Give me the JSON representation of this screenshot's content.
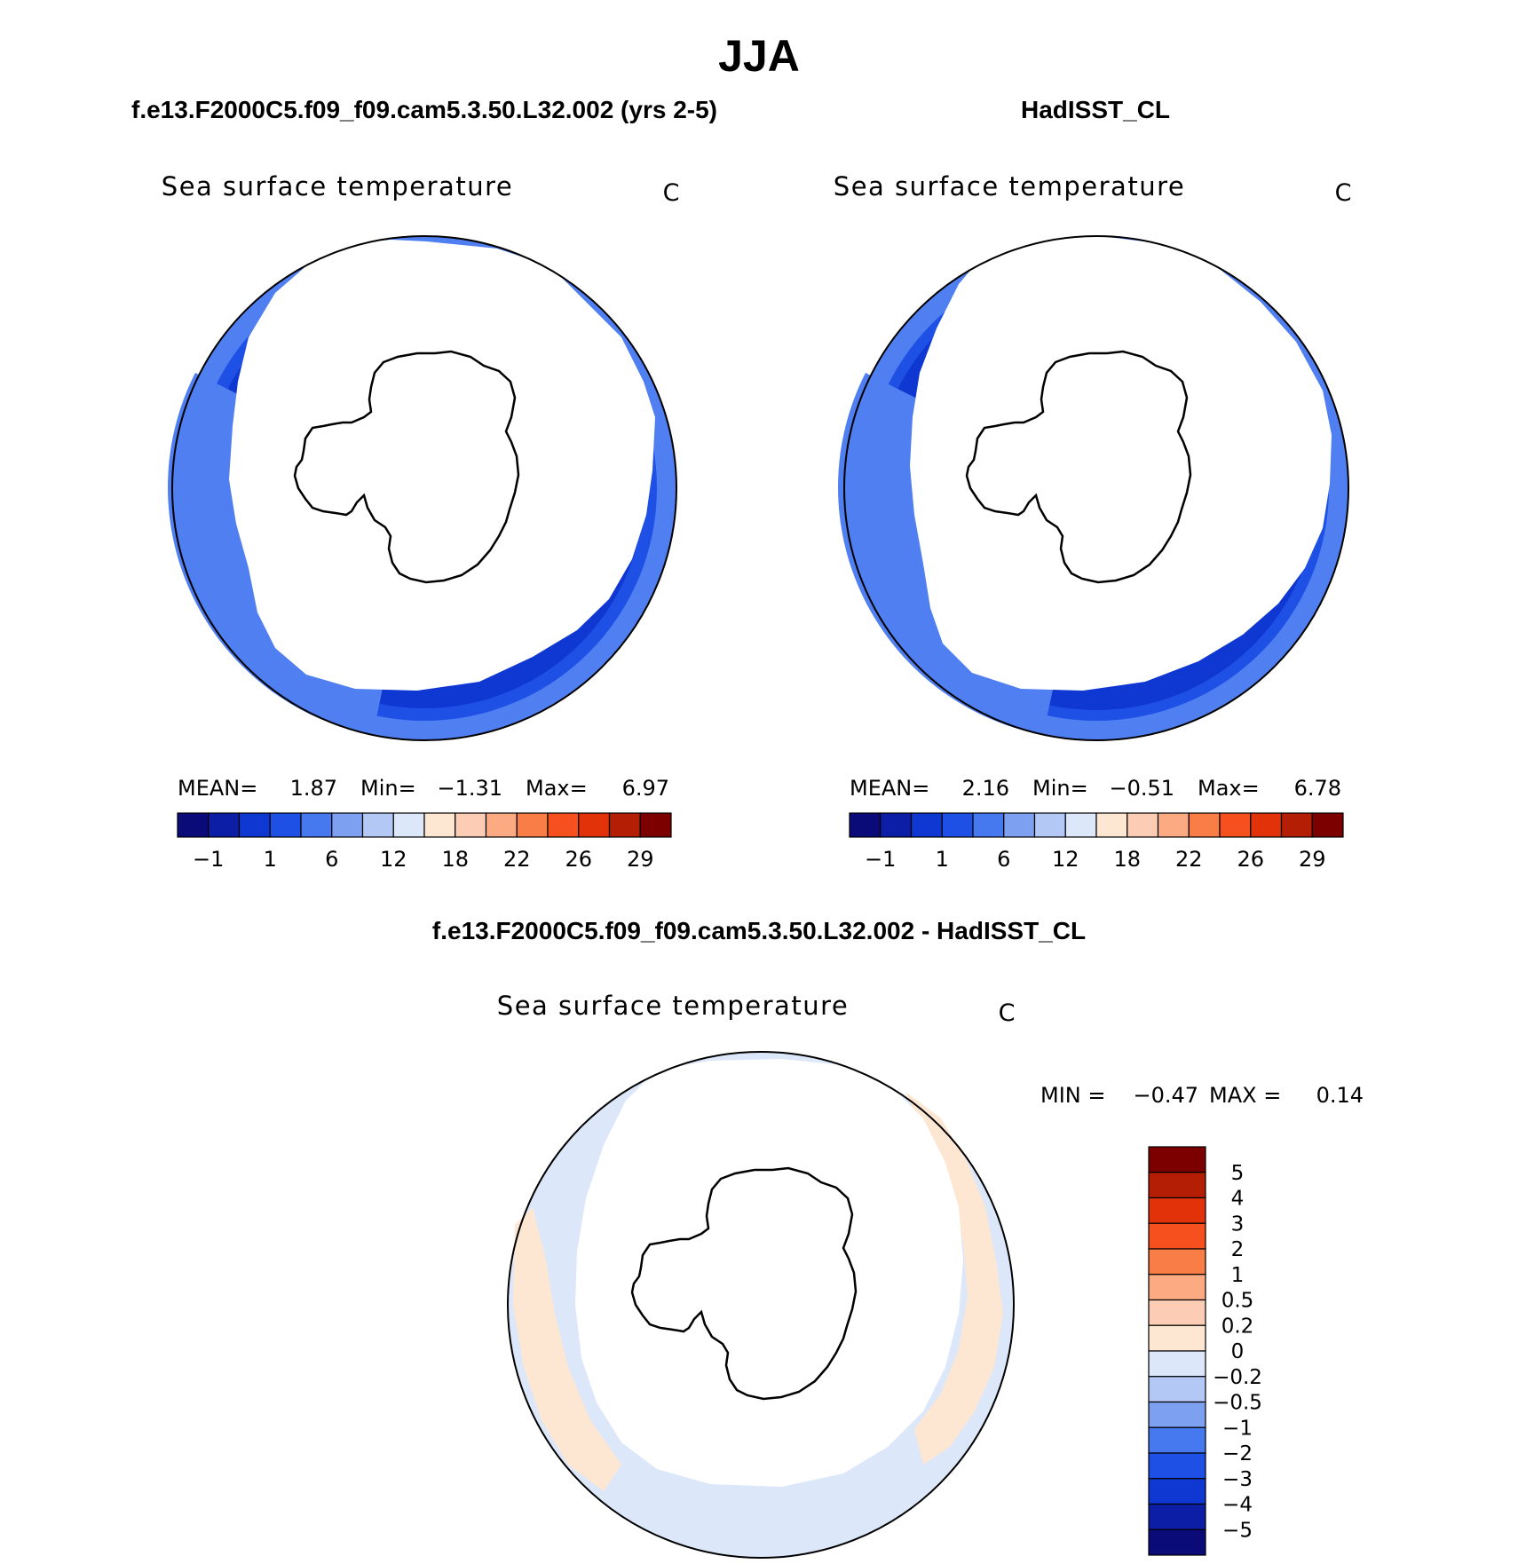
{
  "page_title": "JJA",
  "panels": {
    "left": {
      "case_title": "f.e13.F2000C5.f09_f09.cam5.3.50.L32.002 (yrs 2-5)",
      "var_title": "Sea surface temperature",
      "units": "C",
      "stats": {
        "mean_label": "MEAN=",
        "mean": "1.87",
        "min_label": "Min=",
        "min": "−1.31",
        "max_label": "Max=",
        "max": "6.97"
      }
    },
    "right": {
      "case_title": "HadISST_CL",
      "var_title": "Sea surface temperature",
      "units": "C",
      "stats": {
        "mean_label": "MEAN=",
        "mean": "2.16",
        "min_label": "Min=",
        "min": "−0.51",
        "max_label": "Max=",
        "max": "6.78"
      }
    },
    "diff": {
      "case_title": "f.e13.F2000C5.f09_f09.cam5.3.50.L32.002 - HadISST_CL",
      "var_title": "Sea surface temperature",
      "units": "C",
      "stats": {
        "min_label": "MIN =",
        "min": "−0.47",
        "max_label": "MAX =",
        "max": "0.14"
      }
    }
  },
  "colorbar_field": {
    "colors": [
      "#0a0a78",
      "#0b1ea5",
      "#0f37d2",
      "#1e50e6",
      "#4678f0",
      "#7ea0f0",
      "#b4c8f5",
      "#dce8fa",
      "#fde6d2",
      "#fccdb4",
      "#fbaa82",
      "#f87d46",
      "#f5501e",
      "#e1320a",
      "#b41e05",
      "#7d0000"
    ],
    "tick_labels": [
      "−1",
      "1",
      "6",
      "12",
      "18",
      "22",
      "26",
      "29"
    ]
  },
  "colorbar_diff": {
    "colors": [
      "#7d0000",
      "#b41e05",
      "#e1320a",
      "#f5501e",
      "#f87d46",
      "#fbaa82",
      "#fccdb4",
      "#fde6d2",
      "#dce8fa",
      "#b4c8f5",
      "#7ea0f0",
      "#4678f0",
      "#1e50e6",
      "#0f37d2",
      "#0b1ea5",
      "#0a0a78"
    ],
    "tick_labels": [
      "5",
      "4",
      "3",
      "2",
      "1",
      "0.5",
      "0.2",
      "0",
      "−0.2",
      "−0.5",
      "−1",
      "−2",
      "−3",
      "−4",
      "−5"
    ]
  },
  "chart_data": [
    {
      "type": "heatmap",
      "title": "Sea surface temperature",
      "subtitle": "f.e13.F2000C5.f09_f09.cam5.3.50.L32.002 (yrs 2-5)",
      "units": "C",
      "projection": "south-polar-stereographic",
      "contour_levels": [
        -1,
        1,
        6,
        12,
        18,
        22,
        26,
        29
      ],
      "mean": 1.87,
      "min": -1.31,
      "max": 6.97
    },
    {
      "type": "heatmap",
      "title": "Sea surface temperature",
      "subtitle": "HadISST_CL",
      "units": "C",
      "projection": "south-polar-stereographic",
      "contour_levels": [
        -1,
        1,
        6,
        12,
        18,
        22,
        26,
        29
      ],
      "mean": 2.16,
      "min": -0.51,
      "max": 6.78
    },
    {
      "type": "heatmap",
      "title": "Sea surface temperature",
      "subtitle": "f.e13.F2000C5.f09_f09.cam5.3.50.L32.002 - HadISST_CL",
      "units": "C",
      "projection": "south-polar-stereographic",
      "contour_levels": [
        -5,
        -4,
        -3,
        -2,
        -1,
        -0.5,
        -0.2,
        0,
        0.2,
        0.5,
        1,
        2,
        3,
        4,
        5
      ],
      "min": -0.47,
      "max": 0.14
    }
  ]
}
